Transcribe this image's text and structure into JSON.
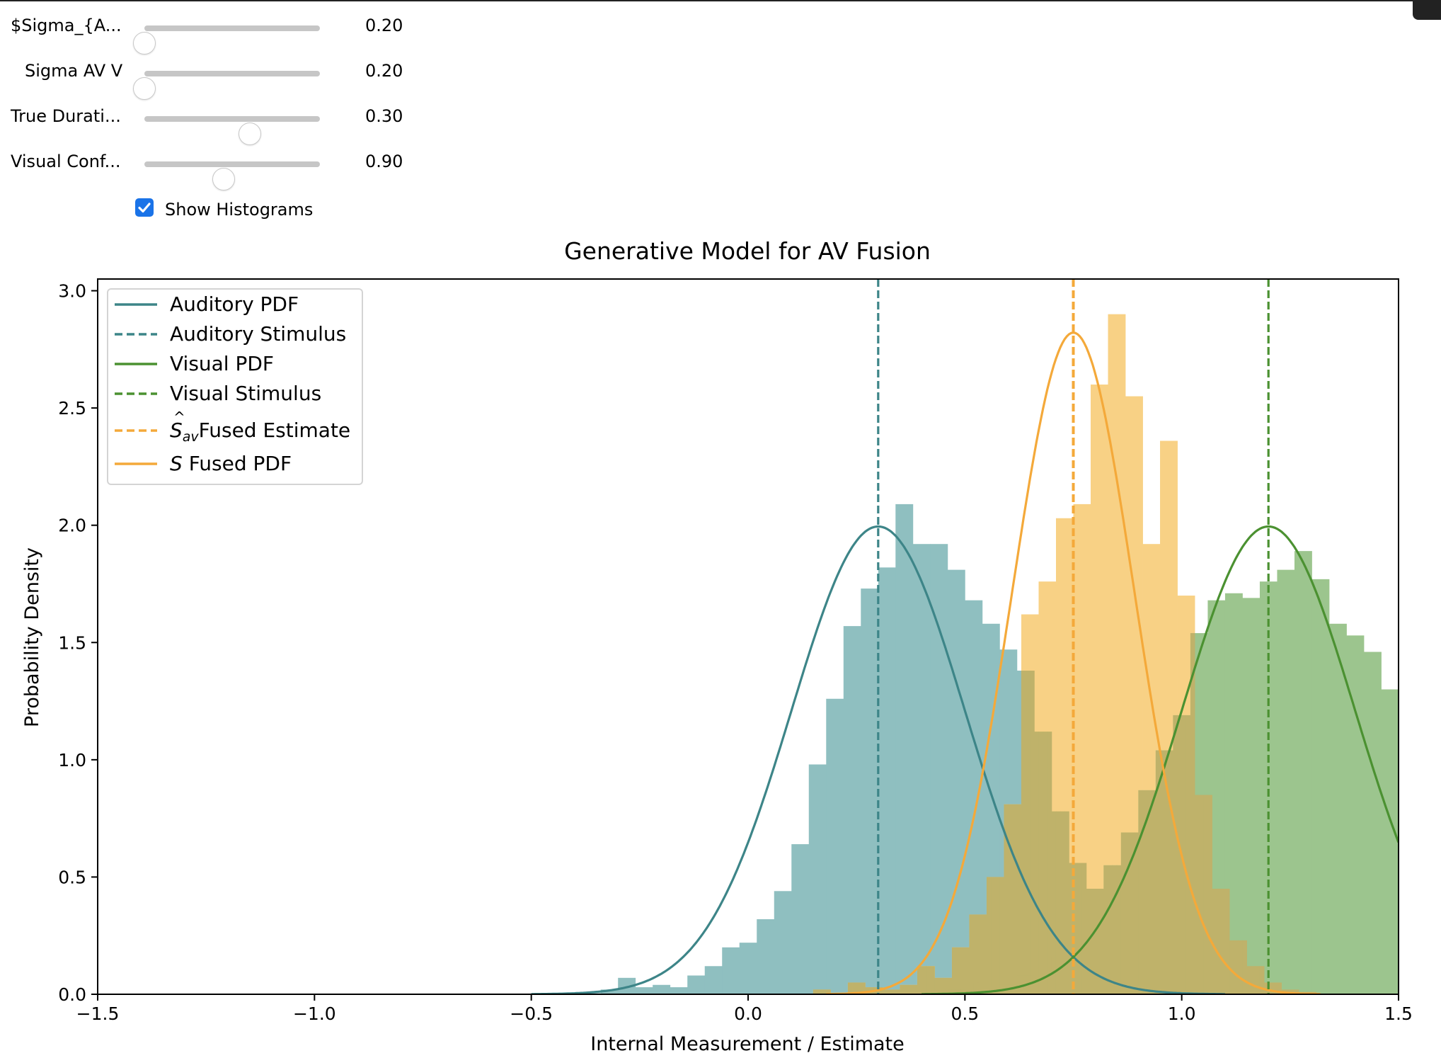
{
  "controls": {
    "sliders": [
      {
        "label": "$Sigma_{A...",
        "value": "0.20",
        "fraction": 0.0
      },
      {
        "label": "Sigma AV V",
        "value": "0.20",
        "fraction": 0.0
      },
      {
        "label": "True Durati...",
        "value": "0.30",
        "fraction": 0.6
      },
      {
        "label": "Visual Conf...",
        "value": "0.90",
        "fraction": 0.45
      }
    ],
    "checkbox": {
      "label": "Show Histograms",
      "checked": true
    }
  },
  "colors": {
    "auditory": "#3d8588",
    "visual": "#4b9131",
    "fused": "#f4a93a",
    "aud_hist": "#8fbfc0",
    "vis_hist": "#9cc58e",
    "fus_hist": "#f8d185",
    "overlap": "#bfb26a"
  },
  "chart_data": {
    "type": "histogram+line",
    "title": "Generative Model for AV Fusion",
    "xlabel": "Internal Measurement / Estimate",
    "ylabel": "Probability Density",
    "xlim": [
      -1.5,
      1.5
    ],
    "ylim": [
      0,
      3.05
    ],
    "xticks": [
      -1.5,
      -1.0,
      -0.5,
      0.0,
      0.5,
      1.0,
      1.5
    ],
    "xtick_labels": [
      "−1.5",
      "−1.0",
      "−0.5",
      "0.0",
      "0.5",
      "1.0",
      "1.5"
    ],
    "yticks": [
      0.0,
      0.5,
      1.0,
      1.5,
      2.0,
      2.5,
      3.0
    ],
    "ytick_labels": [
      "0.0",
      "0.5",
      "1.0",
      "1.5",
      "2.0",
      "2.5",
      "3.0"
    ],
    "legend_position": "upper left",
    "legend": [
      {
        "label": "Auditory PDF",
        "style": "solid",
        "series": "auditory"
      },
      {
        "label": "Auditory Stimulus",
        "style": "dashed",
        "series": "auditory"
      },
      {
        "label": "Visual PDF",
        "style": "solid",
        "series": "visual"
      },
      {
        "label": "Visual Stimulus",
        "style": "dashed",
        "series": "visual"
      },
      {
        "label": "Fused Estimate",
        "style": "dashed",
        "series": "fused",
        "math_prefix": "S_av hat"
      },
      {
        "label": "Fused PDF",
        "style": "solid",
        "series": "fused",
        "math_prefix": "S"
      }
    ],
    "pdfs": [
      {
        "name": "Auditory PDF",
        "series": "auditory",
        "mean": 0.3,
        "sigma": 0.2,
        "x_range": [
          -0.5,
          1.1
        ]
      },
      {
        "name": "Visual PDF",
        "series": "visual",
        "mean": 1.2,
        "sigma": 0.2,
        "x_range": [
          0.4,
          1.5
        ]
      },
      {
        "name": "S Fused PDF",
        "series": "fused",
        "mean": 0.75,
        "sigma": 0.1414,
        "x_range": [
          0.18,
          1.32
        ]
      }
    ],
    "stimulus_lines": [
      {
        "name": "Auditory Stimulus",
        "series": "auditory",
        "x": 0.3
      },
      {
        "name": "Visual Stimulus",
        "series": "visual",
        "x": 1.2
      },
      {
        "name": "Fused Estimate",
        "series": "fused",
        "x": 0.75
      }
    ],
    "histograms": [
      {
        "name": "auditory",
        "bin_start": -0.5,
        "bin_width": 0.04,
        "values": [
          0.005,
          0.005,
          0.005,
          0.005,
          0.02,
          0.07,
          0.03,
          0.04,
          0.03,
          0.08,
          0.12,
          0.2,
          0.22,
          0.32,
          0.44,
          0.64,
          0.98,
          1.26,
          1.57,
          1.73,
          1.82,
          2.09,
          1.92,
          1.92,
          1.81,
          1.68,
          1.58,
          1.47,
          1.38,
          1.12,
          0.78,
          0.56,
          0.45,
          0.31,
          0.21,
          0.13,
          0.08,
          0.05,
          0.04,
          0.02
        ]
      },
      {
        "name": "fused",
        "bin_start": 0.15,
        "bin_width": 0.04,
        "values": [
          0.02,
          0.005,
          0.05,
          0.03,
          0.02,
          0.04,
          0.12,
          0.07,
          0.2,
          0.34,
          0.5,
          0.81,
          1.62,
          1.76,
          2.03,
          2.09,
          2.6,
          2.9,
          2.55,
          1.92,
          2.36,
          1.7,
          0.85,
          0.45,
          0.23,
          0.12,
          0.05,
          0.02,
          0.01
        ]
      },
      {
        "name": "visual",
        "bin_start": 0.38,
        "bin_width": 0.04,
        "values": [
          0.005,
          0.005,
          0.02,
          0.05,
          0.03,
          0.04,
          0.08,
          0.11,
          0.16,
          0.26,
          0.39,
          0.55,
          0.69,
          0.87,
          1.04,
          1.19,
          1.54,
          1.68,
          1.71,
          1.69,
          1.76,
          1.81,
          1.89,
          1.77,
          1.58,
          1.53,
          1.46,
          1.3,
          1.04
        ]
      }
    ]
  }
}
